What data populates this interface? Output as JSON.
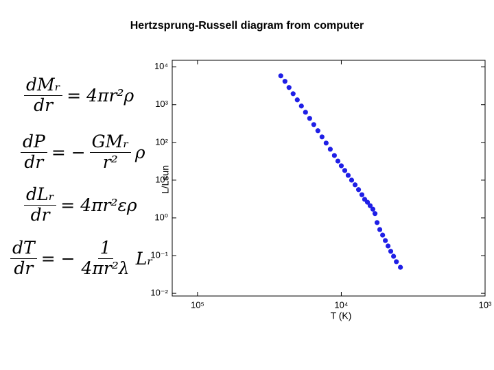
{
  "chart_data": {
    "type": "scatter",
    "title": "Hertzsprung-Russell diagram from computer",
    "x_label": "T (K)",
    "y_label": "L/Lsun",
    "xscale": "log",
    "yscale": "log",
    "color": "#1f1fe6",
    "xlim": [
      150000,
      1000
    ],
    "ylim": [
      0.0085,
      15000
    ],
    "xticks": [
      {
        "value": 100000,
        "label": "10⁵"
      },
      {
        "value": 10000,
        "label": "10⁴"
      },
      {
        "value": 1000,
        "label": "10³"
      }
    ],
    "yticks": [
      {
        "value": 0.01,
        "label": "10⁻²"
      },
      {
        "value": 0.1,
        "label": "10⁻¹"
      },
      {
        "value": 1,
        "label": "10⁰"
      },
      {
        "value": 10,
        "label": "10¹"
      },
      {
        "value": 100,
        "label": "10²"
      },
      {
        "value": 1000,
        "label": "10³"
      },
      {
        "value": 10000,
        "label": "10⁴"
      }
    ],
    "x": [
      26360,
      24660,
      23100,
      21630,
      20240,
      18950,
      17740,
      16600,
      15540,
      14550,
      13620,
      12750,
      11930,
      11170,
      10560,
      10000,
      9460,
      8960,
      8480,
      8020,
      7590,
      7190,
      6880,
      6580,
      6300,
      6030,
      5830,
      5640,
      5400,
      5160,
      4940,
      4730,
      4530,
      4330,
      4140,
      3880
    ],
    "y": [
      5800,
      4150,
      2850,
      1950,
      1340,
      920,
      630,
      433,
      297,
      204,
      140,
      96,
      66,
      45,
      32,
      24,
      18,
      13.4,
      10,
      7.5,
      5.6,
      4.1,
      3.1,
      2.6,
      2.1,
      1.7,
      1.3,
      0.75,
      0.49,
      0.35,
      0.25,
      0.18,
      0.13,
      0.096,
      0.069,
      0.049
    ]
  },
  "equations": [
    {
      "num": "dMᵣ",
      "den": "dr",
      "rhs": [
        "= 4πr²ρ"
      ]
    },
    {
      "num": "dP",
      "den": "dr",
      "rhs": [
        "= −",
        {
          "num": "GMᵣ",
          "den": "r²"
        },
        "ρ"
      ]
    },
    {
      "num": "dLᵣ",
      "den": "dr",
      "rhs": [
        "= 4πr²ερ"
      ]
    },
    {
      "num": "dT",
      "den": "dr",
      "rhs": [
        "= −",
        {
          "num": "1",
          "den": "4πr²λ"
        },
        "Lᵣ"
      ]
    }
  ]
}
